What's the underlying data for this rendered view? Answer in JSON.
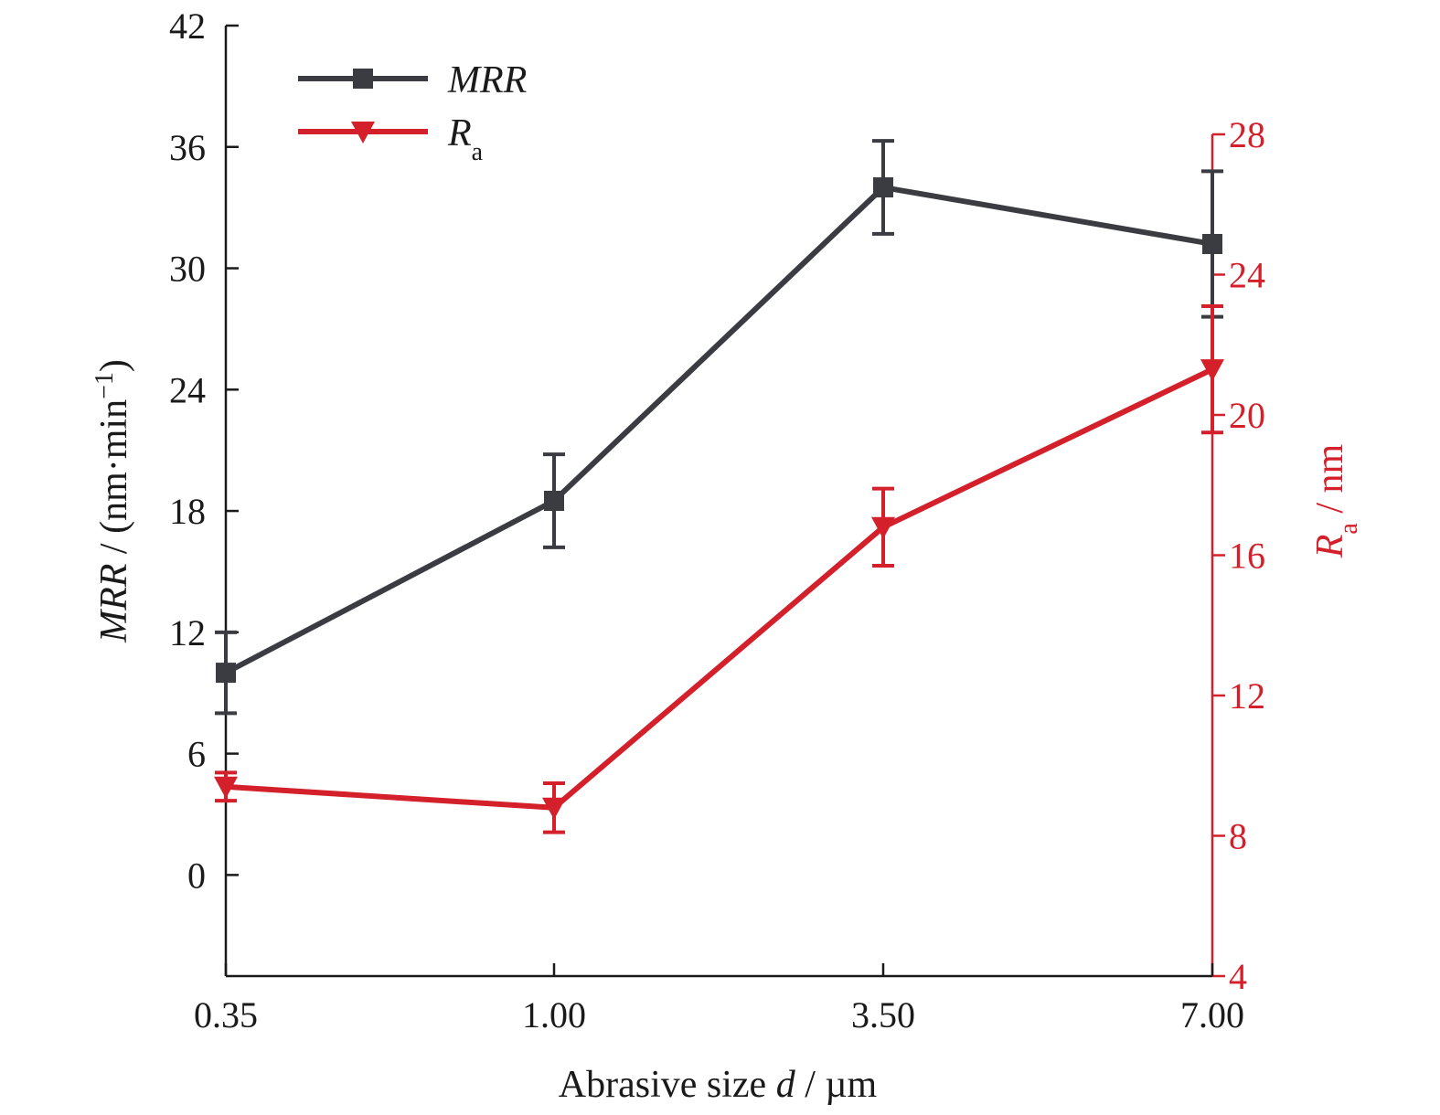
{
  "chart_data": {
    "type": "line",
    "x_categories": [
      "0.35",
      "1.00",
      "3.50",
      "7.00"
    ],
    "xlabel": {
      "prefix": "Abrasive size ",
      "var": "d",
      "unit": " / µm"
    },
    "y_left": {
      "label_var": "MRR",
      "label_unit": " / (nm·min",
      "label_exp": "−1",
      "label_close": ")",
      "range": [
        -5,
        42
      ],
      "ticks": [
        0,
        6,
        12,
        18,
        24,
        30,
        36,
        42
      ],
      "color": "#3a3c42"
    },
    "y_right": {
      "label_var": "R",
      "label_sub": "a",
      "label_unit": " / nm",
      "range": [
        4,
        28
      ],
      "ticks": [
        4,
        8,
        12,
        16,
        20,
        24,
        28
      ],
      "color": "#d4202a"
    },
    "series": [
      {
        "name": "MRR",
        "axis": "left",
        "marker": "square",
        "color": "#3a3c42",
        "values": [
          10.0,
          18.5,
          34.0,
          31.2
        ],
        "errors": [
          2.0,
          2.3,
          2.3,
          3.6
        ]
      },
      {
        "name": "R",
        "name_sub": "a",
        "axis": "right",
        "marker": "triangle-down",
        "color": "#d4202a",
        "values": [
          9.4,
          8.8,
          16.8,
          21.3
        ],
        "errors": [
          0.4,
          0.7,
          1.1,
          1.8
        ]
      }
    ],
    "legend_position": "top-left",
    "grid": false
  }
}
